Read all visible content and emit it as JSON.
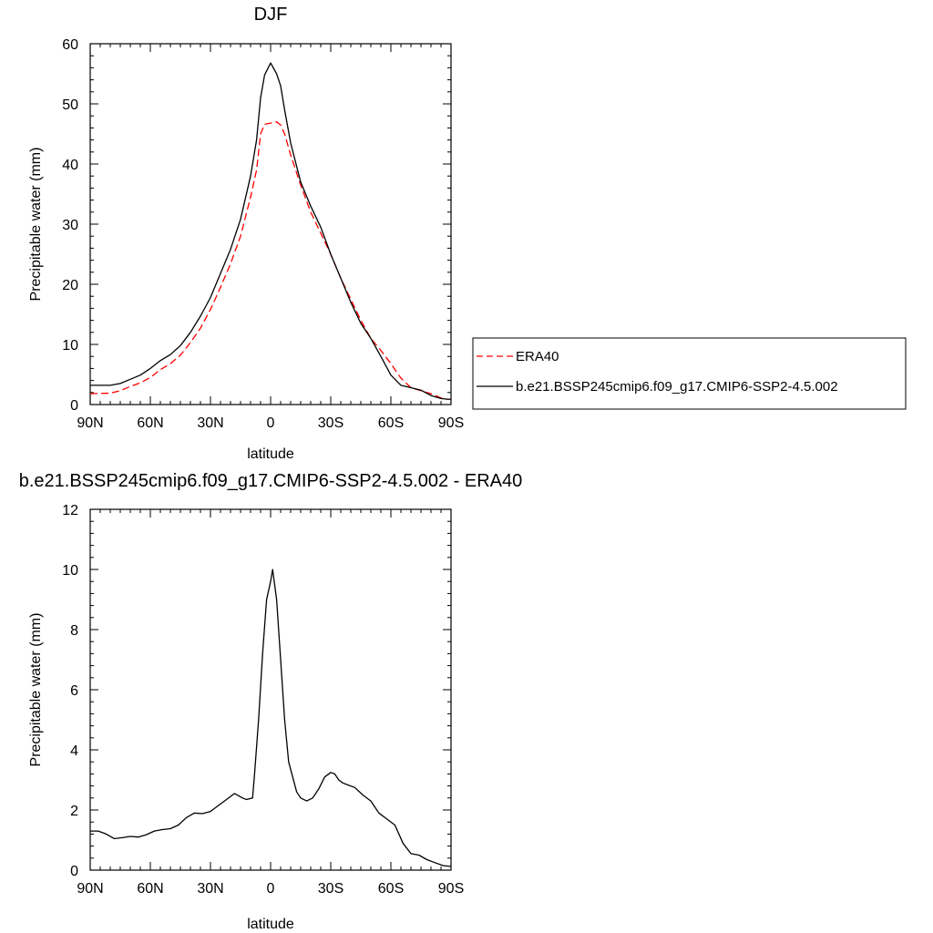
{
  "chart_data": [
    {
      "type": "line",
      "title": "DJF",
      "xlabel": "latitude",
      "ylabel": "Precipitable water (mm)",
      "xlim": [
        -90,
        90
      ],
      "ylim": [
        0,
        60
      ],
      "xticks": [
        -90,
        -60,
        -30,
        0,
        30,
        60,
        90
      ],
      "xtick_labels": [
        "90N",
        "60N",
        "30N",
        "0",
        "30S",
        "60S",
        "90S"
      ],
      "yticks": [
        0,
        10,
        20,
        30,
        40,
        50,
        60
      ],
      "ytick_labels": [
        "0",
        "10",
        "20",
        "30",
        "40",
        "50",
        "60"
      ],
      "grid": false,
      "legend_position": "right",
      "series": [
        {
          "name": "ERA40",
          "color": "#ff0000",
          "style": "dashed",
          "x": [
            -90,
            -80,
            -75,
            -70,
            -65,
            -60,
            -55,
            -50,
            -45,
            -40,
            -35,
            -30,
            -25,
            -20,
            -15,
            -10,
            -7,
            -5,
            -3,
            0,
            3,
            5,
            7,
            10,
            15,
            20,
            25,
            30,
            35,
            40,
            45,
            50,
            55,
            60,
            65,
            70,
            75,
            80,
            85,
            88,
            90
          ],
          "y": [
            1.8,
            1.9,
            2.3,
            3.0,
            3.6,
            4.5,
            5.8,
            6.8,
            8.2,
            10.3,
            12.7,
            15.8,
            19.5,
            23.4,
            28.0,
            34.5,
            39.0,
            45.0,
            46.6,
            46.8,
            47.0,
            46.5,
            45.0,
            41.5,
            36.5,
            32.0,
            28.5,
            25.0,
            21.0,
            17.5,
            14.0,
            11.0,
            9.0,
            6.8,
            4.4,
            2.8,
            2.3,
            1.8,
            1.1,
            0.9,
            0.9
          ]
        },
        {
          "name": "b.e21.BSSP245cmip6.f09_g17.CMIP6-SSP2-4.5.002",
          "color": "#000000",
          "style": "solid",
          "x": [
            -90,
            -80,
            -75,
            -70,
            -65,
            -60,
            -55,
            -50,
            -45,
            -40,
            -35,
            -30,
            -25,
            -20,
            -15,
            -10,
            -7,
            -5,
            -3,
            0,
            3,
            5,
            7,
            10,
            15,
            20,
            25,
            30,
            35,
            40,
            45,
            50,
            55,
            60,
            65,
            70,
            75,
            80,
            85,
            88,
            90
          ],
          "y": [
            3.2,
            3.2,
            3.5,
            4.2,
            4.9,
            6.0,
            7.3,
            8.3,
            9.8,
            12.0,
            14.7,
            17.8,
            21.8,
            25.8,
            30.8,
            38.0,
            44.0,
            51.0,
            54.8,
            56.8,
            55.0,
            53.0,
            49.0,
            43.5,
            37.0,
            33.0,
            29.5,
            25.0,
            21.0,
            17.0,
            13.5,
            11.0,
            8.0,
            4.9,
            3.2,
            2.8,
            2.4,
            1.5,
            1.0,
            0.9,
            0.9
          ]
        }
      ]
    },
    {
      "type": "line",
      "title": "b.e21.BSSP245cmip6.f09_g17.CMIP6-SSP2-4.5.002 - ERA40",
      "xlabel": "latitude",
      "ylabel": "Precipitable water (mm)",
      "xlim": [
        -90,
        90
      ],
      "ylim": [
        0,
        12
      ],
      "xticks": [
        -90,
        -60,
        -30,
        0,
        30,
        60,
        90
      ],
      "xtick_labels": [
        "90N",
        "60N",
        "30N",
        "0",
        "30S",
        "60S",
        "90S"
      ],
      "yticks": [
        0,
        2,
        4,
        6,
        8,
        10,
        12
      ],
      "ytick_labels": [
        "0",
        "2",
        "4",
        "6",
        "8",
        "10",
        "12"
      ],
      "grid": false,
      "series": [
        {
          "color": "#000000",
          "style": "solid",
          "x": [
            -90,
            -86,
            -82,
            -78,
            -74,
            -70,
            -66,
            -62,
            -58,
            -54,
            -50,
            -46,
            -42,
            -38,
            -34,
            -30,
            -26,
            -22,
            -18,
            -14,
            -12,
            -9,
            -8,
            -6,
            -4,
            -2,
            0,
            1,
            3,
            5,
            7,
            9,
            11,
            13,
            15,
            18,
            21,
            24,
            27,
            30,
            32,
            34,
            36,
            38,
            42,
            46,
            50,
            54,
            58,
            62,
            66,
            70,
            74,
            78,
            82,
            86,
            90
          ],
          "y": [
            1.3,
            1.3,
            1.2,
            1.05,
            1.08,
            1.12,
            1.1,
            1.18,
            1.3,
            1.35,
            1.38,
            1.5,
            1.75,
            1.9,
            1.88,
            1.95,
            2.15,
            2.35,
            2.55,
            2.4,
            2.35,
            2.4,
            3.2,
            5.0,
            7.2,
            9.0,
            9.6,
            10.0,
            9.0,
            7.0,
            5.0,
            3.6,
            3.1,
            2.6,
            2.4,
            2.3,
            2.4,
            2.7,
            3.1,
            3.25,
            3.2,
            3.0,
            2.9,
            2.85,
            2.75,
            2.5,
            2.3,
            1.9,
            1.7,
            1.5,
            0.9,
            0.55,
            0.5,
            0.35,
            0.25,
            0.15,
            0.12
          ]
        }
      ]
    }
  ]
}
